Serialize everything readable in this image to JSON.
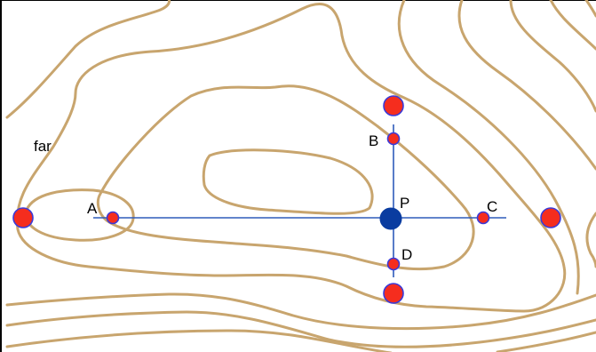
{
  "labels": {
    "far": "far",
    "A": "A",
    "B": "B",
    "C": "C",
    "D": "D",
    "P": "P"
  },
  "colors": {
    "contour": "#C8A56E",
    "axis": "#2E5BBA",
    "point_fill": "#F52D1E",
    "point_stroke": "#3A3AD8",
    "center": "#0A3CA0"
  }
}
